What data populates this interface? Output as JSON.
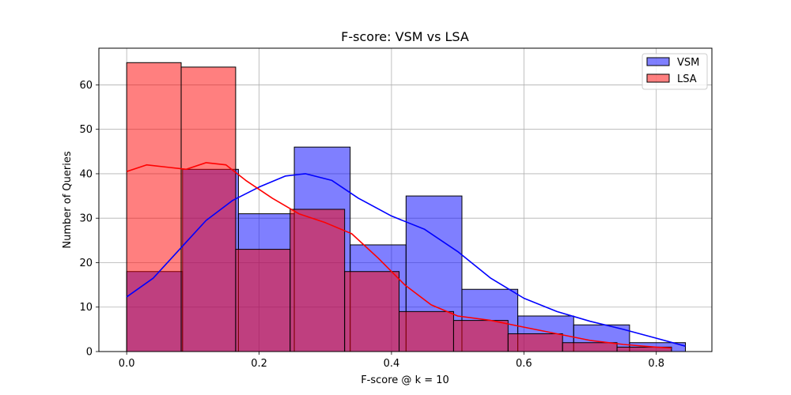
{
  "chart_data": {
    "type": "histogram",
    "title": "F-score: VSM vs LSA",
    "xlabel": "F-score @ k = 10",
    "ylabel": "Number of Queries",
    "xlim": [
      -0.042,
      0.884
    ],
    "ylim": [
      0,
      68.25
    ],
    "xticks": [
      0.0,
      0.2,
      0.4,
      0.6,
      0.8
    ],
    "xtick_labels": [
      "0.0",
      "0.2",
      "0.4",
      "0.6",
      "0.8"
    ],
    "yticks": [
      0,
      10,
      20,
      30,
      40,
      50,
      60
    ],
    "ytick_labels": [
      "0",
      "10",
      "20",
      "30",
      "40",
      "50",
      "60"
    ],
    "grid": true,
    "legend_position": "top-right",
    "series": [
      {
        "name": "VSM",
        "color": "#0000ff",
        "fill": "rgba(0,0,255,0.5)",
        "bin_edges": [
          0.0,
          0.0844,
          0.1688,
          0.2532,
          0.3376,
          0.422,
          0.5064,
          0.5908,
          0.6752,
          0.7596,
          0.844
        ],
        "counts": [
          18,
          41,
          31,
          46,
          24,
          35,
          14,
          8,
          6,
          2
        ],
        "kde": [
          [
            0.0,
            12.3
          ],
          [
            0.04,
            16.5
          ],
          [
            0.08,
            23.0
          ],
          [
            0.12,
            29.5
          ],
          [
            0.16,
            34.0
          ],
          [
            0.2,
            37.0
          ],
          [
            0.24,
            39.5
          ],
          [
            0.27,
            40.0
          ],
          [
            0.31,
            38.5
          ],
          [
            0.35,
            34.5
          ],
          [
            0.4,
            30.5
          ],
          [
            0.45,
            27.5
          ],
          [
            0.5,
            22.5
          ],
          [
            0.55,
            16.5
          ],
          [
            0.6,
            12.0
          ],
          [
            0.65,
            9.0
          ],
          [
            0.7,
            6.8
          ],
          [
            0.75,
            5.0
          ],
          [
            0.8,
            3.0
          ],
          [
            0.844,
            1.2
          ]
        ]
      },
      {
        "name": "LSA",
        "color": "#ff0000",
        "fill": "rgba(255,0,0,0.5)",
        "bin_edges": [
          0.0,
          0.0823,
          0.1646,
          0.2469,
          0.3292,
          0.4115,
          0.4938,
          0.5761,
          0.6584,
          0.7407,
          0.823
        ],
        "counts": [
          65,
          64,
          23,
          32,
          18,
          9,
          7,
          4,
          2,
          1
        ],
        "kde": [
          [
            0.0,
            40.5
          ],
          [
            0.03,
            42.0
          ],
          [
            0.06,
            41.5
          ],
          [
            0.09,
            41.0
          ],
          [
            0.12,
            42.5
          ],
          [
            0.15,
            42.0
          ],
          [
            0.18,
            38.5
          ],
          [
            0.22,
            34.5
          ],
          [
            0.26,
            31.0
          ],
          [
            0.3,
            29.0
          ],
          [
            0.34,
            26.5
          ],
          [
            0.38,
            21.0
          ],
          [
            0.42,
            15.0
          ],
          [
            0.46,
            10.5
          ],
          [
            0.5,
            8.0
          ],
          [
            0.55,
            7.0
          ],
          [
            0.6,
            5.5
          ],
          [
            0.65,
            4.0
          ],
          [
            0.7,
            2.5
          ],
          [
            0.75,
            1.6
          ],
          [
            0.8,
            1.0
          ],
          [
            0.823,
            0.8
          ]
        ]
      }
    ]
  }
}
